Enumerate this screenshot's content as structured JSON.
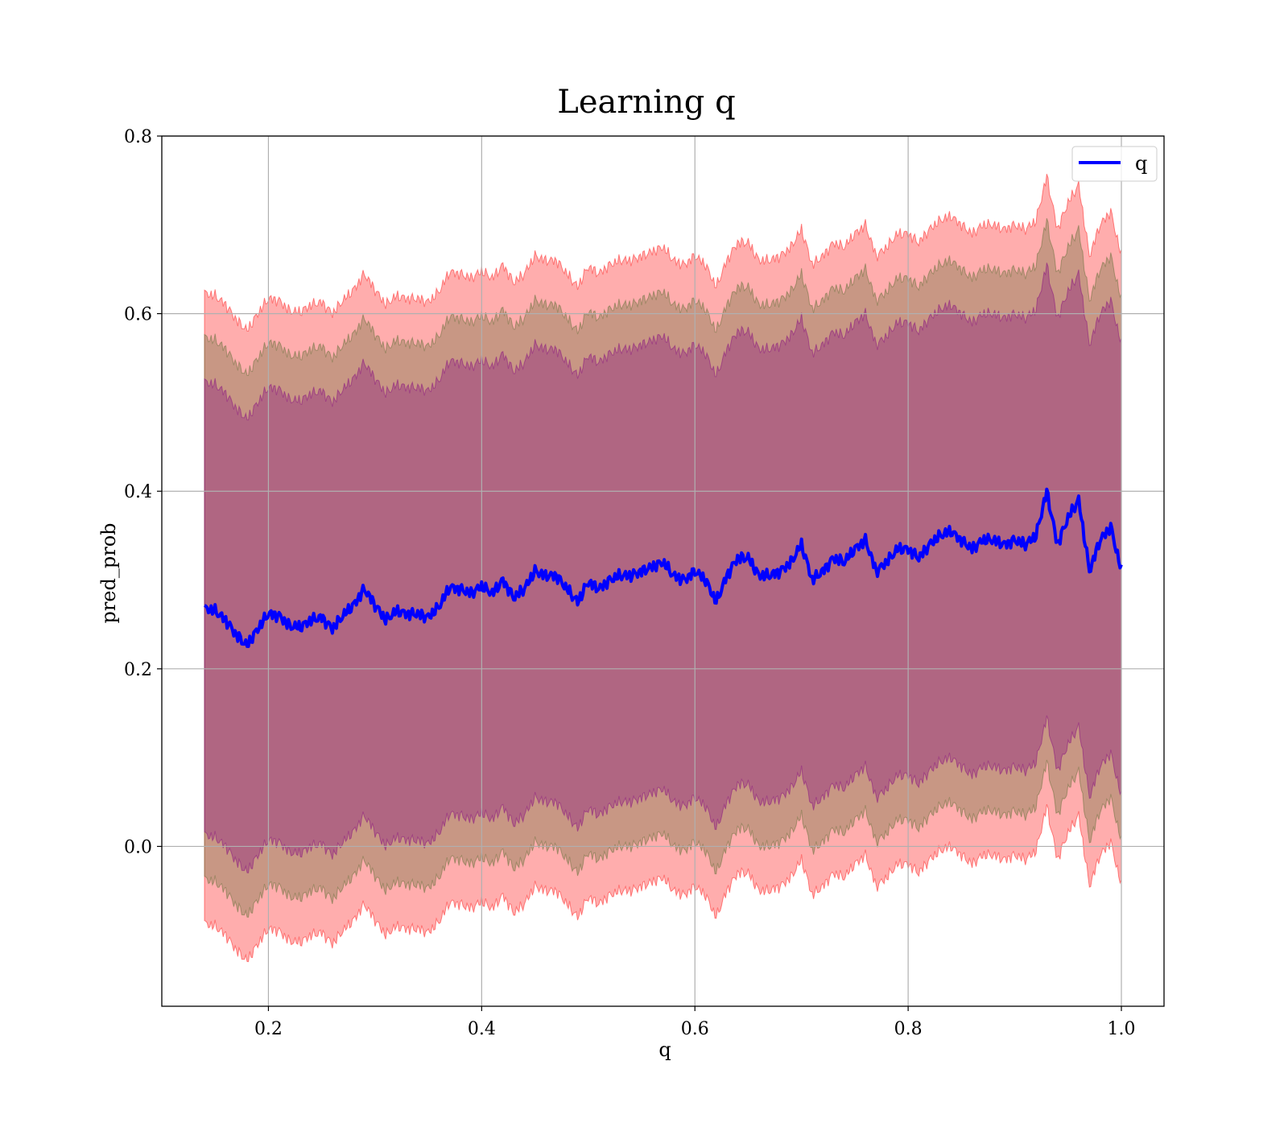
{
  "chart_data": {
    "type": "area",
    "title": "Learning q",
    "xlabel": "q",
    "ylabel": "pred_prob",
    "xlim": [
      0.1,
      1.04
    ],
    "ylim": [
      -0.18,
      0.8
    ],
    "xticks": [
      0.2,
      0.4,
      0.6,
      0.8,
      1.0
    ],
    "xtick_labels": [
      "0.2",
      "0.4",
      "0.6",
      "0.8",
      "1.0"
    ],
    "yticks": [
      0.0,
      0.2,
      0.4,
      0.6,
      0.8
    ],
    "ytick_labels": [
      "0.0",
      "0.2",
      "0.4",
      "0.6",
      "0.8"
    ],
    "grid": true,
    "legend_position": "top-right",
    "x": [
      0.14,
      0.15,
      0.16,
      0.17,
      0.18,
      0.19,
      0.2,
      0.21,
      0.22,
      0.23,
      0.24,
      0.25,
      0.26,
      0.27,
      0.28,
      0.29,
      0.3,
      0.31,
      0.32,
      0.33,
      0.34,
      0.35,
      0.36,
      0.37,
      0.38,
      0.39,
      0.4,
      0.41,
      0.42,
      0.43,
      0.44,
      0.45,
      0.46,
      0.47,
      0.48,
      0.49,
      0.5,
      0.51,
      0.52,
      0.53,
      0.54,
      0.55,
      0.56,
      0.57,
      0.58,
      0.59,
      0.6,
      0.61,
      0.62,
      0.63,
      0.64,
      0.65,
      0.66,
      0.67,
      0.68,
      0.69,
      0.7,
      0.71,
      0.72,
      0.73,
      0.74,
      0.75,
      0.76,
      0.77,
      0.78,
      0.79,
      0.8,
      0.81,
      0.82,
      0.83,
      0.84,
      0.85,
      0.86,
      0.87,
      0.88,
      0.89,
      0.9,
      0.91,
      0.92,
      0.93,
      0.94,
      0.95,
      0.96,
      0.97,
      0.98,
      0.99,
      1.0
    ],
    "series": [
      {
        "name": "q",
        "color": "#0000ff",
        "values": [
          0.268,
          0.265,
          0.255,
          0.238,
          0.226,
          0.245,
          0.262,
          0.26,
          0.248,
          0.247,
          0.255,
          0.258,
          0.245,
          0.26,
          0.272,
          0.29,
          0.272,
          0.255,
          0.265,
          0.262,
          0.262,
          0.258,
          0.27,
          0.292,
          0.29,
          0.285,
          0.293,
          0.285,
          0.3,
          0.28,
          0.29,
          0.31,
          0.305,
          0.305,
          0.29,
          0.275,
          0.298,
          0.29,
          0.3,
          0.305,
          0.305,
          0.31,
          0.315,
          0.32,
          0.305,
          0.3,
          0.31,
          0.3,
          0.275,
          0.305,
          0.325,
          0.325,
          0.305,
          0.305,
          0.31,
          0.32,
          0.34,
          0.3,
          0.31,
          0.325,
          0.32,
          0.335,
          0.345,
          0.31,
          0.32,
          0.335,
          0.335,
          0.325,
          0.34,
          0.35,
          0.355,
          0.345,
          0.335,
          0.345,
          0.345,
          0.34,
          0.345,
          0.34,
          0.35,
          0.4,
          0.34,
          0.37,
          0.39,
          0.31,
          0.345,
          0.36,
          0.31
        ]
      }
    ],
    "bands": [
      {
        "color": "#ff0000",
        "opacity": 0.32,
        "upper_offset": 0.355,
        "lower_offset": -0.355
      },
      {
        "color": "#556b2f",
        "opacity": 0.32,
        "upper_offset": 0.305,
        "lower_offset": -0.305
      },
      {
        "color": "#800080",
        "opacity": 0.32,
        "upper_offset": 0.255,
        "lower_offset": -0.255
      }
    ]
  }
}
